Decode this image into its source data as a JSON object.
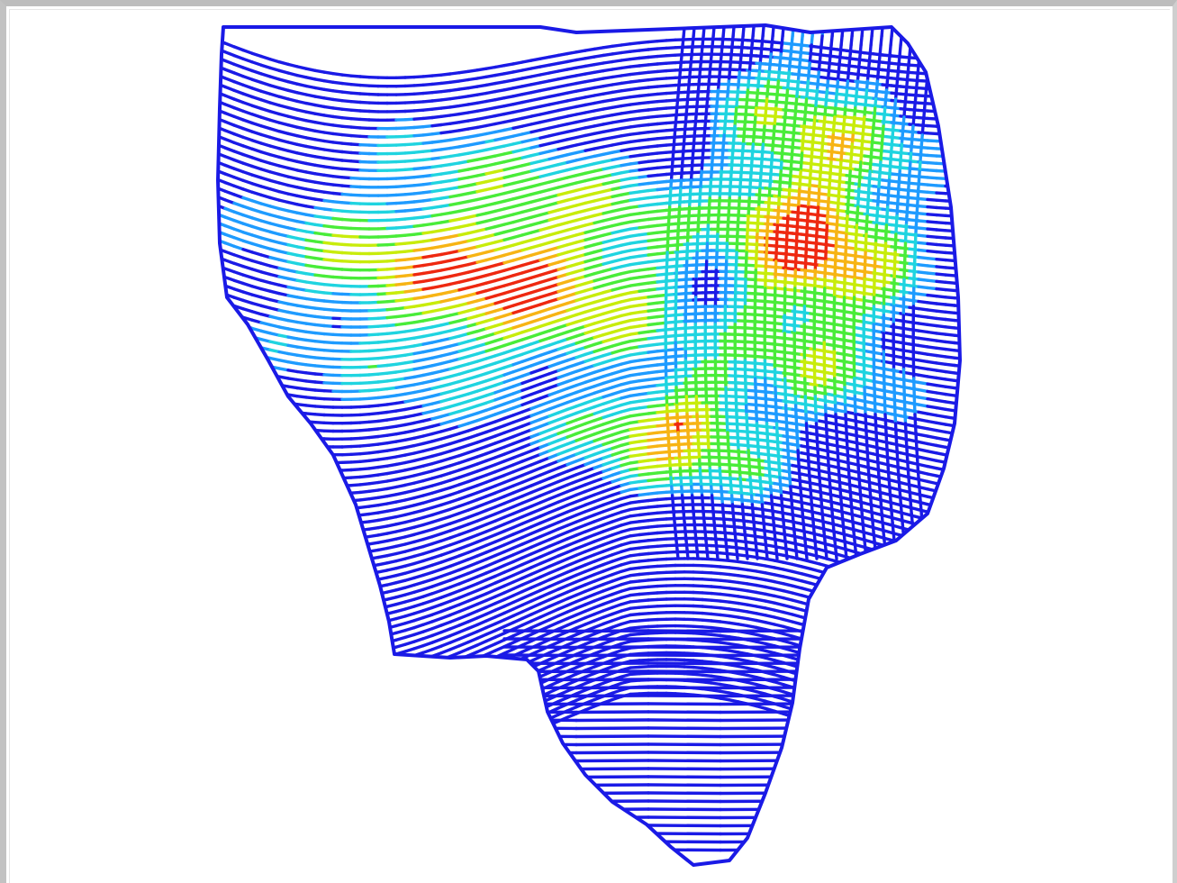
{
  "map": {
    "kind": "yield-map",
    "render": "guidance-passes",
    "color_ramp": [
      "#1a1ae6",
      "#1e9bff",
      "#1fd4e0",
      "#49ec39",
      "#c8ec0b",
      "#f7b414",
      "#ee2810"
    ],
    "low_color": "#1a1ae6",
    "high_color": "#ee2810",
    "background": "#ffffff",
    "frame_color": "#c4c4c4"
  }
}
